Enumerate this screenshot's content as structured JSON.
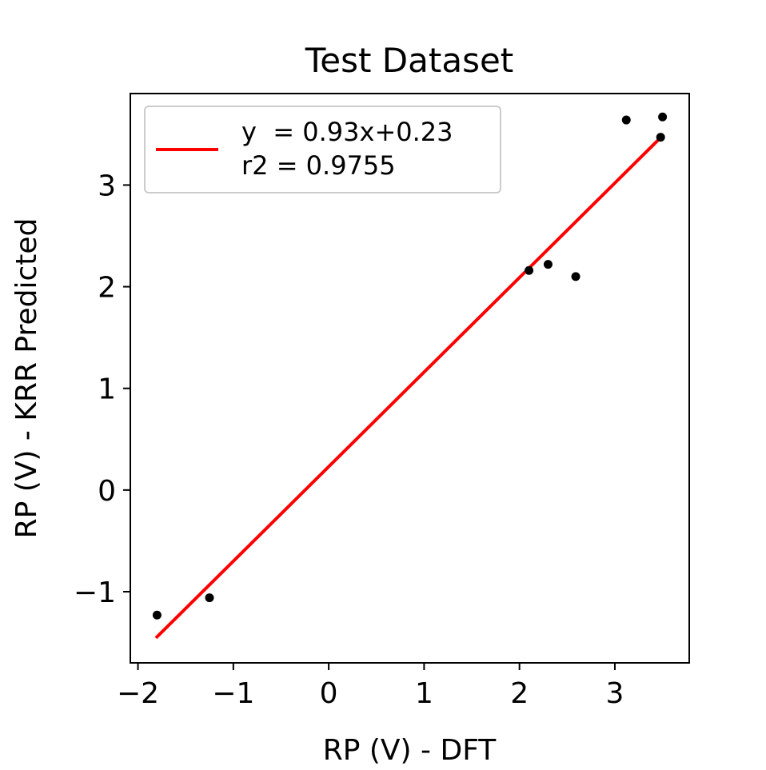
{
  "chart_data": {
    "type": "scatter",
    "title": "Test Dataset",
    "xlabel": "RP (V) - DFT",
    "ylabel": "RP (V) - KRR Predicted",
    "xlim": [
      -2.08,
      3.78
    ],
    "ylim": [
      -1.7,
      3.9
    ],
    "xticks": [
      -2,
      -1,
      0,
      1,
      2,
      3
    ],
    "yticks": [
      -1,
      0,
      1,
      2,
      3
    ],
    "xtick_labels": [
      "−2",
      "−1",
      "0",
      "1",
      "2",
      "3"
    ],
    "ytick_labels": [
      "−1",
      "0",
      "1",
      "2",
      "3"
    ],
    "grid": false,
    "legend_position": "upper left",
    "points": [
      {
        "x": -1.8,
        "y": -1.23
      },
      {
        "x": -1.25,
        "y": -1.06
      },
      {
        "x": 2.1,
        "y": 2.16
      },
      {
        "x": 2.3,
        "y": 2.22
      },
      {
        "x": 2.59,
        "y": 2.1
      },
      {
        "x": 3.12,
        "y": 3.64
      },
      {
        "x": 3.48,
        "y": 3.47
      },
      {
        "x": 3.5,
        "y": 3.67
      }
    ],
    "point_color": "#000000",
    "fit_line": {
      "slope": 0.93,
      "intercept": 0.23,
      "x_range": [
        -1.8,
        3.5
      ],
      "color": "#ff0000"
    },
    "legend": {
      "line1": "y  = 0.93x+0.23",
      "line2": "r2 = 0.9755"
    }
  }
}
